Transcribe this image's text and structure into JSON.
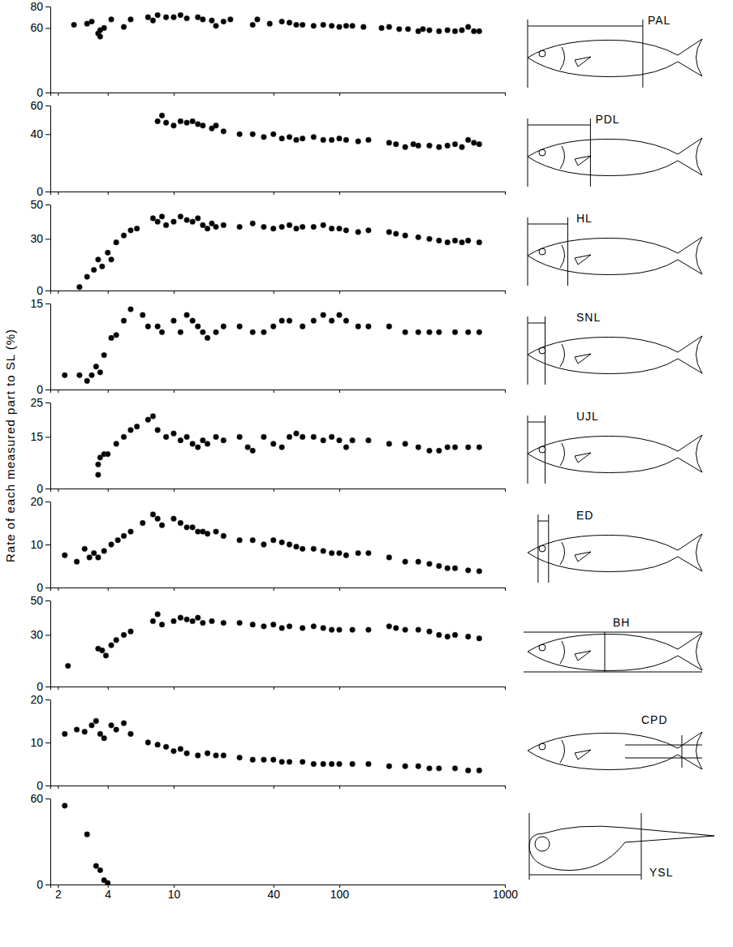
{
  "chart_data": {
    "type": "scatter",
    "ylabel": "Rate of each measured part to SL  (%)",
    "log": "x",
    "xlim": [
      1.8,
      1000
    ],
    "xticks": [
      2,
      4,
      10,
      40,
      100,
      1000
    ],
    "color": "#000000",
    "marker": "circle",
    "panels": [
      {
        "title": "PAL",
        "ylim": [
          0,
          80
        ],
        "yticks": [
          0,
          60,
          80
        ],
        "tick_labels": "y",
        "x": [
          2.5,
          3,
          3.2,
          3.5,
          3.6,
          3.6,
          3.8,
          4.2,
          5,
          5.5,
          7,
          7.5,
          8,
          9,
          10,
          11,
          12,
          14,
          15,
          17,
          18,
          20,
          22,
          30,
          32,
          38,
          45,
          50,
          55,
          60,
          70,
          80,
          90,
          100,
          110,
          120,
          140,
          180,
          200,
          230,
          260,
          300,
          320,
          350,
          400,
          450,
          500,
          550,
          600,
          650,
          700
        ],
        "values": [
          63,
          64,
          66,
          55,
          52,
          58,
          60,
          68,
          61,
          68,
          70,
          67,
          72,
          70,
          70,
          72,
          69,
          70,
          68,
          67,
          62,
          66,
          68,
          63,
          68,
          64,
          66,
          65,
          63,
          63,
          62,
          63,
          62,
          61,
          62,
          62,
          61,
          60,
          61,
          59,
          59,
          57,
          59,
          58,
          57,
          58,
          57,
          58,
          61,
          57,
          57
        ]
      },
      {
        "title": "PDL",
        "ylim": [
          0,
          60
        ],
        "yticks": [
          0,
          40,
          60
        ],
        "tick_labels": "y",
        "x": [
          8,
          8.5,
          9,
          10,
          11,
          12,
          13,
          14,
          15,
          17,
          18,
          20,
          25,
          30,
          35,
          40,
          45,
          50,
          55,
          60,
          70,
          80,
          90,
          100,
          110,
          130,
          150,
          200,
          220,
          250,
          280,
          300,
          350,
          400,
          450,
          500,
          550,
          600,
          650,
          700
        ],
        "values": [
          49,
          53,
          48,
          46,
          49,
          48,
          49,
          47,
          46,
          44,
          46,
          42,
          40,
          40,
          38,
          40,
          37,
          38,
          36,
          37,
          38,
          36,
          36,
          37,
          36,
          35,
          36,
          34,
          33,
          31,
          33,
          32,
          32,
          31,
          32,
          33,
          31,
          36,
          34,
          33
        ]
      },
      {
        "title": "HL",
        "ylim": [
          0,
          50
        ],
        "yticks": [
          0,
          30,
          50
        ],
        "tick_labels": "y",
        "x": [
          2.7,
          3,
          3.3,
          3.5,
          3.7,
          4,
          4.2,
          4.5,
          5,
          5.5,
          6,
          7.5,
          8,
          8.5,
          9,
          10,
          11,
          12,
          13,
          14,
          15,
          16,
          17,
          18,
          20,
          25,
          30,
          35,
          40,
          45,
          50,
          55,
          60,
          70,
          80,
          90,
          100,
          110,
          130,
          150,
          200,
          220,
          250,
          300,
          350,
          400,
          450,
          500,
          550,
          600,
          700
        ],
        "values": [
          2,
          8,
          12,
          18,
          14,
          22,
          18,
          28,
          32,
          35,
          36,
          42,
          40,
          43,
          38,
          40,
          43,
          41,
          40,
          42,
          38,
          36,
          39,
          37,
          38,
          37,
          39,
          37,
          36,
          37,
          38,
          36,
          37,
          37,
          38,
          36,
          36,
          35,
          34,
          35,
          34,
          33,
          32,
          31,
          30,
          29,
          28,
          29,
          28,
          29,
          28
        ]
      },
      {
        "title": "SNL",
        "ylim": [
          0,
          15
        ],
        "yticks": [
          0,
          15
        ],
        "tick_labels": "y",
        "x": [
          2.2,
          2.7,
          3,
          3.2,
          3.4,
          3.6,
          3.8,
          4.2,
          4.5,
          5,
          5.5,
          6.5,
          7,
          8,
          8.5,
          10,
          11,
          12,
          13,
          14,
          15,
          16,
          18,
          20,
          25,
          30,
          35,
          40,
          45,
          50,
          60,
          70,
          80,
          90,
          100,
          110,
          130,
          150,
          200,
          250,
          300,
          350,
          400,
          500,
          600,
          700
        ],
        "values": [
          2.5,
          2.5,
          1.5,
          2.5,
          4,
          3,
          6,
          9,
          9.5,
          12,
          14,
          13,
          11,
          11,
          10,
          12,
          10,
          13,
          12,
          11,
          10,
          9,
          10,
          11,
          11,
          10,
          10,
          11,
          12,
          12,
          11,
          12,
          13,
          12,
          13,
          12,
          11,
          11,
          11,
          10,
          10,
          10,
          10,
          10,
          10,
          10
        ]
      },
      {
        "title": "UJL",
        "ylim": [
          0,
          25
        ],
        "yticks": [
          0,
          15,
          25
        ],
        "tick_labels": "y",
        "x": [
          3.5,
          3.5,
          3.6,
          3.8,
          4,
          4.5,
          5,
          5.5,
          6,
          7,
          7.5,
          8,
          9,
          10,
          11,
          12,
          13,
          14,
          15,
          16,
          18,
          20,
          25,
          28,
          30,
          35,
          40,
          45,
          50,
          55,
          60,
          70,
          80,
          90,
          100,
          110,
          120,
          150,
          200,
          250,
          300,
          350,
          400,
          450,
          500,
          600,
          700
        ],
        "values": [
          4,
          7,
          9,
          10,
          10,
          13,
          15,
          17,
          18,
          20,
          21,
          17,
          15,
          16,
          14,
          15,
          13,
          12,
          14,
          13,
          15,
          14,
          15,
          12,
          11,
          15,
          13,
          12,
          15,
          16,
          15,
          15,
          14,
          15,
          14,
          12,
          14,
          14,
          13,
          13,
          12,
          11,
          11,
          12,
          12,
          12,
          12
        ]
      },
      {
        "title": "ED",
        "ylim": [
          0,
          20
        ],
        "yticks": [
          0,
          10,
          20
        ],
        "tick_labels": "y",
        "x": [
          2.2,
          2.6,
          2.9,
          3.1,
          3.3,
          3.5,
          3.8,
          4.2,
          4.6,
          5,
          5.5,
          6.5,
          7.5,
          8,
          8.5,
          10,
          11,
          12,
          13,
          14,
          15,
          16,
          18,
          20,
          25,
          30,
          35,
          40,
          45,
          50,
          55,
          60,
          70,
          80,
          90,
          100,
          110,
          130,
          150,
          200,
          250,
          300,
          350,
          400,
          450,
          500,
          600,
          700
        ],
        "values": [
          7.5,
          6,
          9,
          7,
          8,
          7,
          8.5,
          10,
          11,
          12,
          13,
          15,
          17,
          16,
          14.5,
          16,
          15,
          14,
          14,
          13,
          13,
          12.5,
          13,
          12,
          11,
          11,
          10,
          11,
          10.5,
          10,
          9.5,
          9,
          9,
          8.5,
          8,
          8,
          7.5,
          8,
          8,
          7,
          6,
          6,
          5.5,
          5,
          4.5,
          4.5,
          4,
          3.8
        ]
      },
      {
        "title": "BH",
        "ylim": [
          0,
          50
        ],
        "yticks": [
          0,
          30,
          50
        ],
        "tick_labels": "y",
        "x": [
          2.3,
          3.5,
          3.7,
          3.9,
          4.2,
          4.5,
          5,
          5.5,
          7.5,
          8,
          8.5,
          10,
          11,
          12,
          13,
          14,
          15,
          17,
          20,
          25,
          30,
          35,
          40,
          45,
          50,
          60,
          70,
          80,
          90,
          100,
          120,
          150,
          200,
          220,
          250,
          300,
          350,
          400,
          450,
          500,
          600,
          700
        ],
        "values": [
          12,
          22,
          21,
          18,
          24,
          27,
          30,
          32,
          38,
          42,
          36,
          38,
          40,
          39,
          38,
          40,
          37,
          38,
          37,
          37,
          36,
          35,
          36,
          34,
          35,
          34,
          35,
          34,
          33,
          33,
          33,
          33,
          35,
          34,
          33,
          33,
          32,
          30,
          29,
          30,
          29,
          28
        ]
      },
      {
        "title": "CPD",
        "ylim": [
          0,
          20
        ],
        "yticks": [
          0,
          10,
          20
        ],
        "tick_labels": "y",
        "x": [
          2.2,
          2.6,
          2.9,
          3.2,
          3.4,
          3.6,
          3.8,
          4.2,
          4.5,
          5,
          5.5,
          7,
          8,
          9,
          10,
          11,
          12,
          14,
          16,
          18,
          20,
          25,
          30,
          35,
          40,
          45,
          50,
          60,
          70,
          80,
          90,
          100,
          120,
          150,
          200,
          250,
          300,
          350,
          400,
          500,
          600,
          700
        ],
        "values": [
          12,
          13,
          12.5,
          14,
          15,
          12,
          11,
          14,
          13,
          14.5,
          12,
          10,
          9.5,
          9,
          8,
          8.5,
          7.5,
          7,
          7.5,
          7,
          7,
          6.5,
          6,
          6,
          6,
          5.5,
          5.5,
          5.5,
          5,
          5,
          5,
          5,
          5,
          5,
          4.5,
          4.5,
          4.5,
          4,
          4,
          4,
          3.5,
          3.5
        ]
      },
      {
        "title": "YSL",
        "ylim": [
          0,
          60
        ],
        "yticks": [
          0,
          60
        ],
        "x": [
          2.2,
          3,
          3.4,
          3.6,
          3.8,
          4
        ],
        "values": [
          55,
          35,
          13,
          10,
          3,
          1
        ]
      }
    ]
  }
}
